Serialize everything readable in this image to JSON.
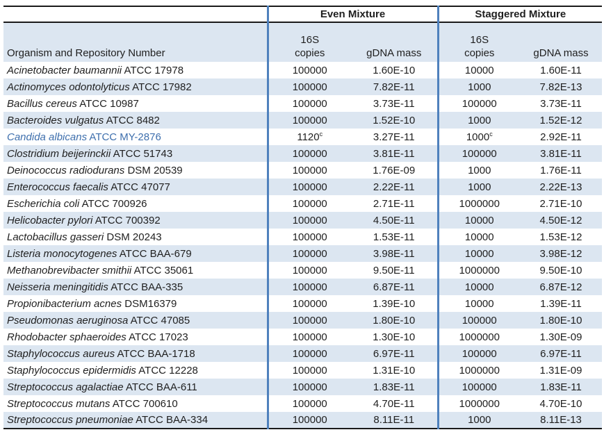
{
  "colors": {
    "accent_line": "#4f81bd",
    "row_shade": "#dce6f1",
    "highlight_text": "#3e6fad",
    "border": "#1a1a1a"
  },
  "table": {
    "group_headers": {
      "even": "Even Mixture",
      "staggered": "Staggered Mixture"
    },
    "organism_header": "Organism and Repository Number",
    "subheaders": {
      "copies_line1": "16S",
      "copies_line2": "copies",
      "gdna": "gDNA mass"
    },
    "rows": [
      {
        "species": "Acinetobacter baumannii",
        "repository": "ATCC 17978",
        "even_copies": "100000",
        "even_gdna": "1.60E-10",
        "staggered_copies": "10000",
        "staggered_gdna": "1.60E-11"
      },
      {
        "species": "Actinomyces odontolyticus",
        "repository": "ATCC 17982",
        "even_copies": "100000",
        "even_gdna": "7.82E-11",
        "staggered_copies": "1000",
        "staggered_gdna": "7.82E-13"
      },
      {
        "species": "Bacillus cereus",
        "repository": "ATCC 10987",
        "even_copies": "100000",
        "even_gdna": "3.73E-11",
        "staggered_copies": "100000",
        "staggered_gdna": "3.73E-11"
      },
      {
        "species": "Bacteroides vulgatus",
        "repository": "ATCC 8482",
        "even_copies": "100000",
        "even_gdna": "1.52E-10",
        "staggered_copies": "1000",
        "staggered_gdna": "1.52E-12"
      },
      {
        "species": "Candida albicans",
        "repository": "ATCC MY-2876",
        "even_copies": "1120",
        "even_copies_sup": "c",
        "even_gdna": "3.27E-11",
        "staggered_copies": "1000",
        "staggered_copies_sup": "c",
        "staggered_gdna": "2.92E-11",
        "highlighted": true
      },
      {
        "species": "Clostridium beijerinckii",
        "repository": "ATCC 51743",
        "even_copies": "100000",
        "even_gdna": "3.81E-11",
        "staggered_copies": "100000",
        "staggered_gdna": "3.81E-11"
      },
      {
        "species": "Deinococcus radiodurans",
        "repository": "DSM 20539",
        "even_copies": "100000",
        "even_gdna": "1.76E-09",
        "staggered_copies": "1000",
        "staggered_gdna": "1.76E-11"
      },
      {
        "species": "Enterococcus faecalis",
        "repository": "ATCC 47077",
        "even_copies": "100000",
        "even_gdna": "2.22E-11",
        "staggered_copies": "1000",
        "staggered_gdna": "2.22E-13"
      },
      {
        "species": "Escherichia coli",
        "repository": "ATCC 700926",
        "even_copies": "100000",
        "even_gdna": "2.71E-11",
        "staggered_copies": "1000000",
        "staggered_gdna": "2.71E-10"
      },
      {
        "species": "Helicobacter pylori",
        "repository": "ATCC 700392",
        "even_copies": "100000",
        "even_gdna": "4.50E-11",
        "staggered_copies": "10000",
        "staggered_gdna": "4.50E-12"
      },
      {
        "species": "Lactobacillus gasseri",
        "repository": "DSM 20243",
        "even_copies": "100000",
        "even_gdna": "1.53E-11",
        "staggered_copies": "10000",
        "staggered_gdna": "1.53E-12"
      },
      {
        "species": "Listeria monocytogenes",
        "repository": "ATCC BAA-679",
        "even_copies": "100000",
        "even_gdna": "3.98E-11",
        "staggered_copies": "10000",
        "staggered_gdna": "3.98E-12"
      },
      {
        "species": "Methanobrevibacter smithii",
        "repository": "ATCC 35061",
        "even_copies": "100000",
        "even_gdna": "9.50E-11",
        "staggered_copies": "1000000",
        "staggered_gdna": "9.50E-10"
      },
      {
        "species": "Neisseria meningitidis",
        "repository": "ATCC BAA-335",
        "even_copies": "100000",
        "even_gdna": "6.87E-11",
        "staggered_copies": "10000",
        "staggered_gdna": "6.87E-12"
      },
      {
        "species": "Propionibacterium acnes",
        "repository": "DSM16379",
        "even_copies": "100000",
        "even_gdna": "1.39E-10",
        "staggered_copies": "10000",
        "staggered_gdna": "1.39E-11"
      },
      {
        "species": "Pseudomonas aeruginosa",
        "repository": "ATCC 47085",
        "even_copies": "100000",
        "even_gdna": "1.80E-10",
        "staggered_copies": "100000",
        "staggered_gdna": "1.80E-10"
      },
      {
        "species": "Rhodobacter sphaeroides",
        "repository": "ATCC 17023",
        "even_copies": "100000",
        "even_gdna": "1.30E-10",
        "staggered_copies": "1000000",
        "staggered_gdna": "1.30E-09"
      },
      {
        "species": "Staphylococcus aureus",
        "repository": "ATCC BAA-1718",
        "even_copies": "100000",
        "even_gdna": "6.97E-11",
        "staggered_copies": "100000",
        "staggered_gdna": "6.97E-11"
      },
      {
        "species": "Staphylococcus epidermidis",
        "repository": "ATCC 12228",
        "even_copies": "100000",
        "even_gdna": "1.31E-10",
        "staggered_copies": "1000000",
        "staggered_gdna": "1.31E-09"
      },
      {
        "species": "Streptococcus agalactiae",
        "repository": "ATCC BAA-611",
        "even_copies": "100000",
        "even_gdna": "1.83E-11",
        "staggered_copies": "100000",
        "staggered_gdna": "1.83E-11"
      },
      {
        "species": "Streptococcus mutans",
        "repository": "ATCC 700610",
        "even_copies": "100000",
        "even_gdna": "4.70E-11",
        "staggered_copies": "1000000",
        "staggered_gdna": "4.70E-10"
      },
      {
        "species": "Streptococcus pneumoniae",
        "repository": "ATCC BAA-334",
        "even_copies": "100000",
        "even_gdna": "8.11E-11",
        "staggered_copies": "1000",
        "staggered_gdna": "8.11E-13"
      }
    ]
  }
}
